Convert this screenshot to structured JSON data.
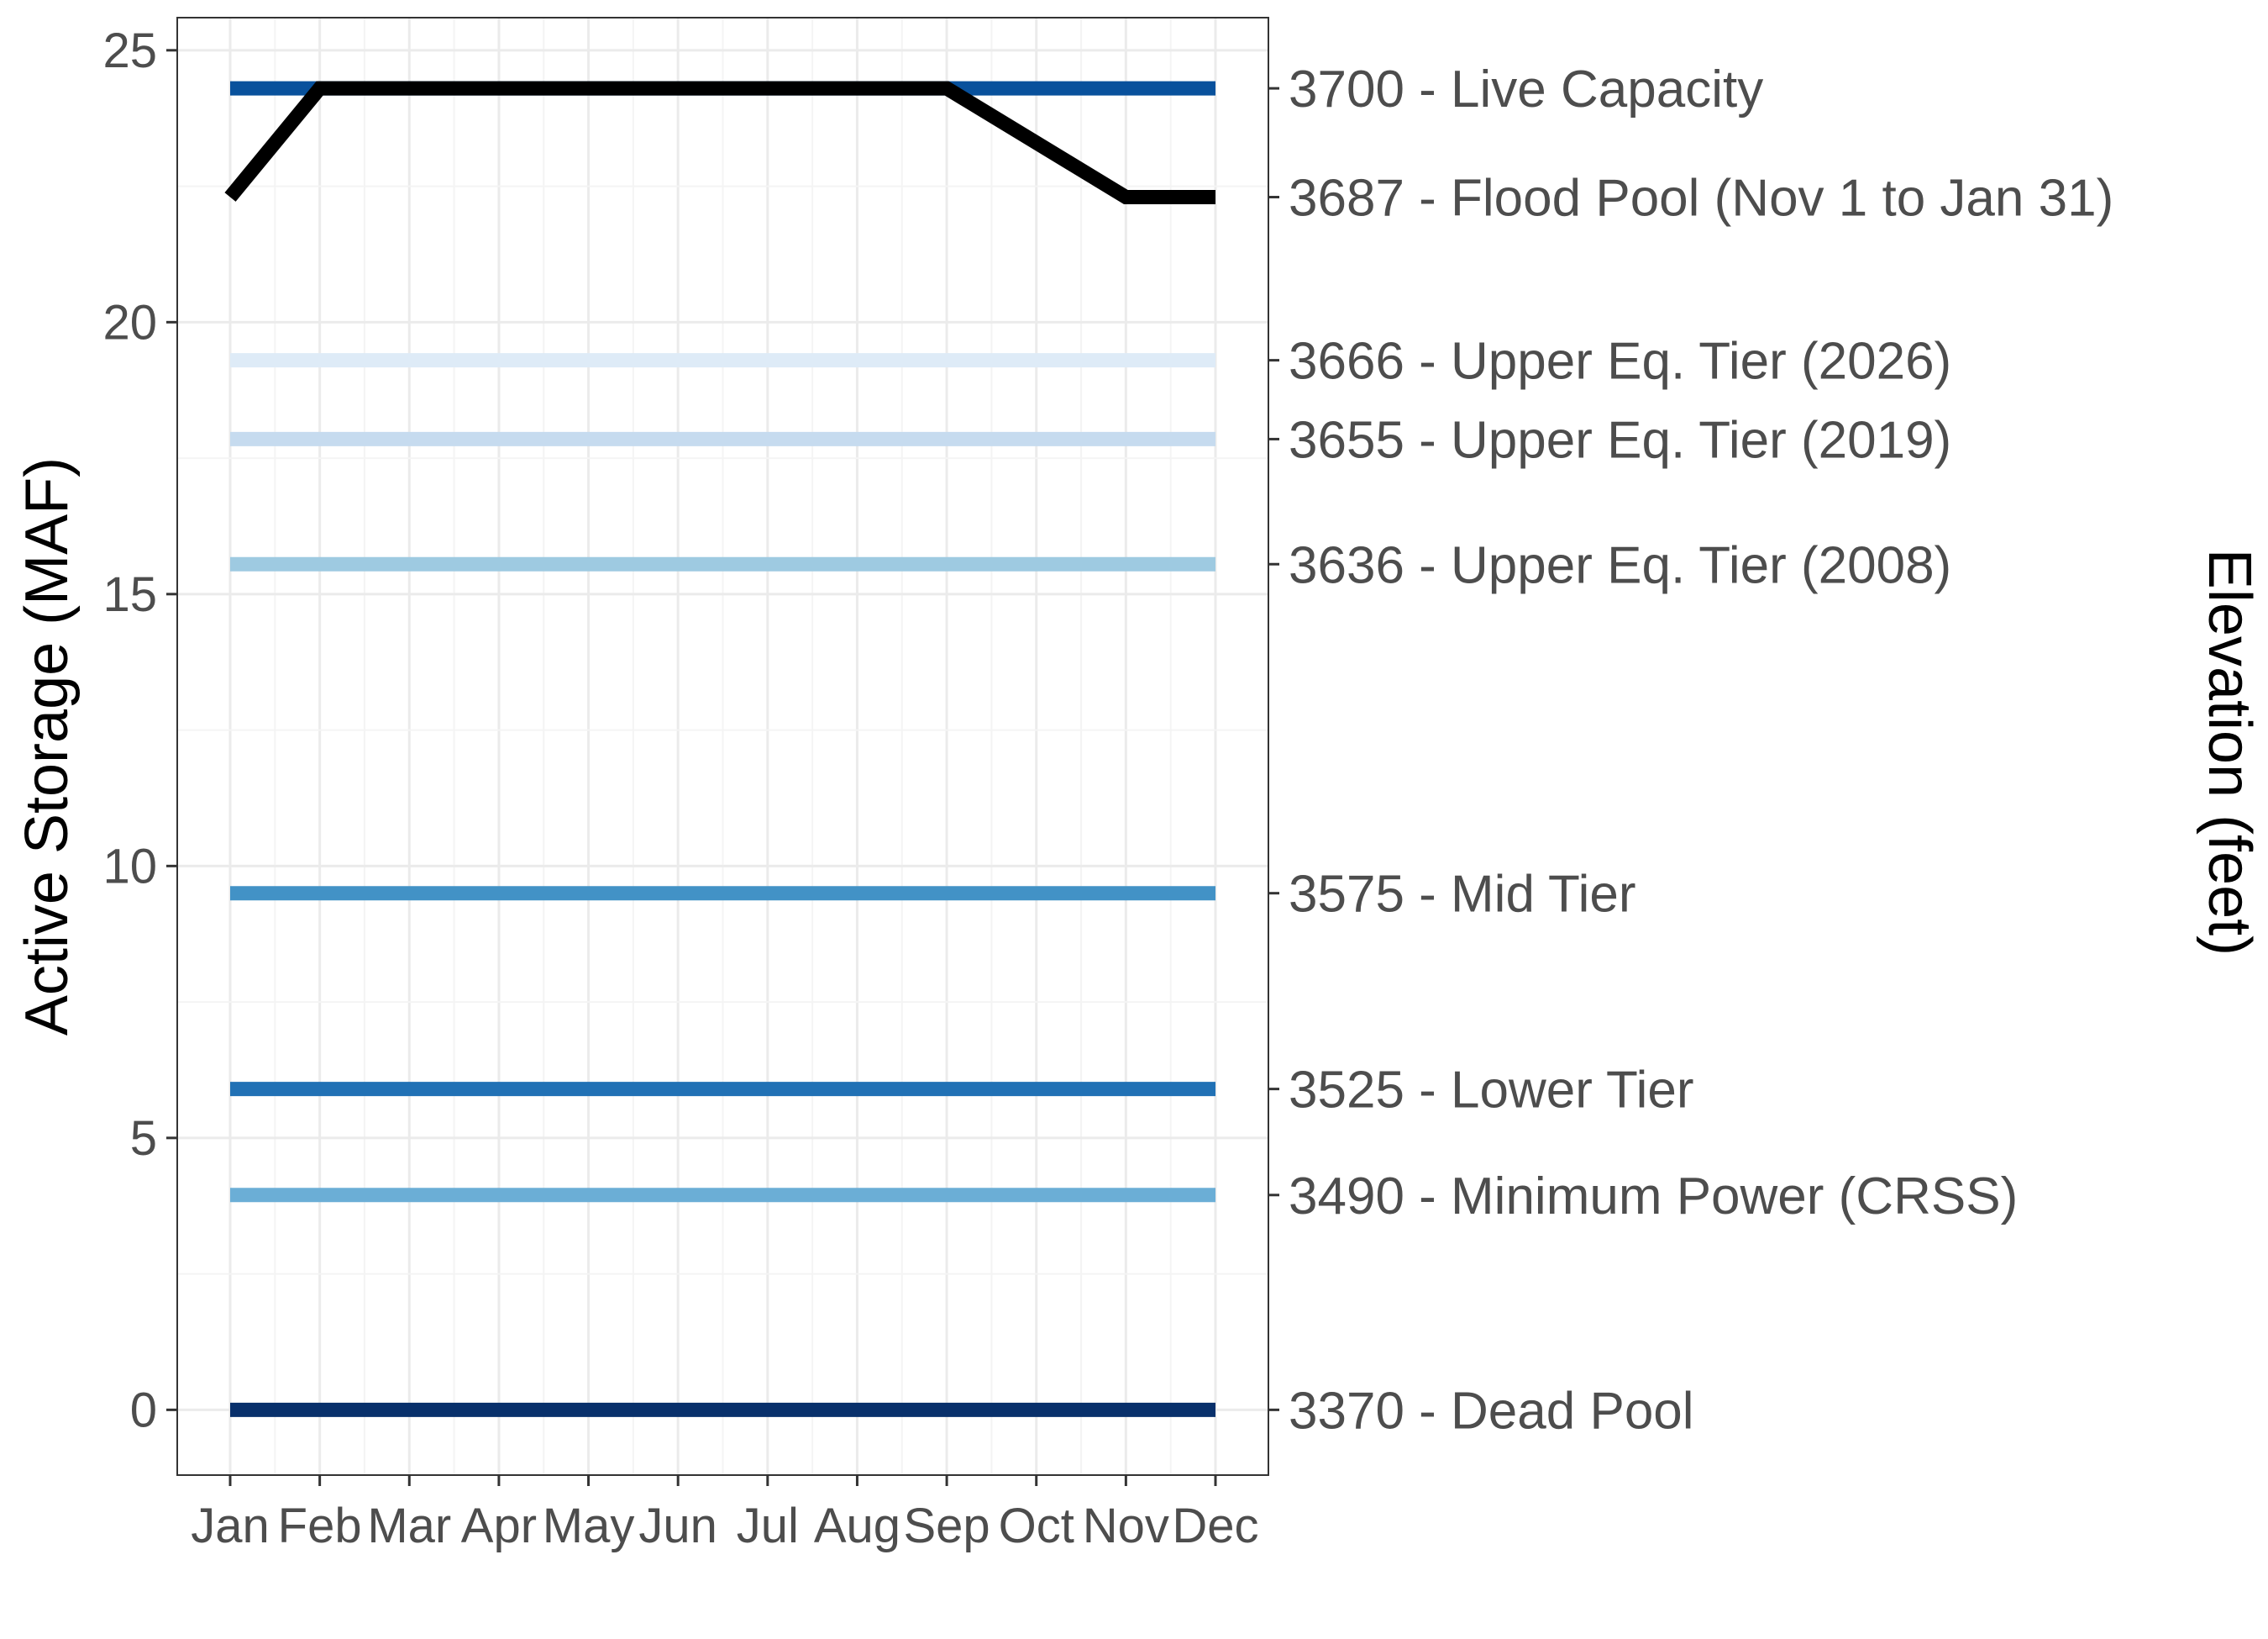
{
  "chart_data": {
    "type": "line",
    "title": "",
    "ylabel": "Active Storage (MAF)",
    "y2label": "Elevation (feet)",
    "ylim": [
      -1.2,
      25.6
    ],
    "yticks": [
      0,
      5,
      10,
      15,
      20,
      25
    ],
    "grid": true,
    "legend": "none",
    "categories": [
      "Jan",
      "Feb",
      "Mar",
      "Apr",
      "May",
      "Jun",
      "Jul",
      "Aug",
      "Sep",
      "Oct",
      "Nov",
      "Dec"
    ],
    "reference_lines": [
      {
        "label": "3700 - Live Capacity",
        "value": 24.3,
        "color": "#08519c"
      },
      {
        "label": "3687 - Flood Pool (Nov 1 to Jan 31)",
        "value": 22.3,
        "color": "#000000"
      },
      {
        "label": "3666 - Upper Eq. Tier (2026)",
        "value": 19.3,
        "color": "#deebf7"
      },
      {
        "label": "3655 - Upper Eq. Tier (2019)",
        "value": 17.85,
        "color": "#c6dbef"
      },
      {
        "label": "3636 - Upper Eq. Tier (2008)",
        "value": 15.55,
        "color": "#9ecae1"
      },
      {
        "label": "3575 - Mid Tier",
        "value": 9.5,
        "color": "#4292c6"
      },
      {
        "label": "3525 - Lower Tier",
        "value": 5.9,
        "color": "#2171b5"
      },
      {
        "label": "3490 - Minimum Power (CRSS)",
        "value": 3.95,
        "color": "#6baed6"
      },
      {
        "label": "3370 - Dead Pool",
        "value": 0,
        "color": "#08306b"
      }
    ],
    "flood_control": {
      "color": "#000000",
      "x": [
        "Jan",
        "Feb",
        "Sep",
        "Nov",
        "Dec"
      ],
      "y": [
        22.3,
        24.3,
        24.3,
        22.3,
        22.3
      ]
    }
  }
}
